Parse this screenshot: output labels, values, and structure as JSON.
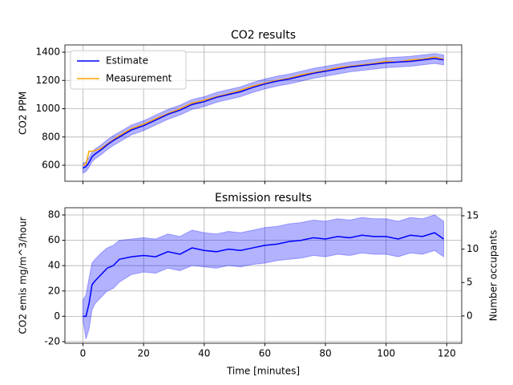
{
  "chart_data": [
    {
      "type": "line",
      "title": "CO2 results",
      "y_label": "CO2 PPM",
      "x": [
        0,
        1,
        2,
        3,
        4,
        6,
        8,
        10,
        12,
        16,
        20,
        24,
        28,
        32,
        36,
        40,
        44,
        48,
        52,
        56,
        60,
        64,
        68,
        72,
        76,
        80,
        84,
        88,
        92,
        96,
        100,
        104,
        108,
        112,
        116,
        119
      ],
      "series": [
        {
          "name": "Estimate",
          "color": "#0000ff",
          "values": [
            580,
            590,
            620,
            660,
            680,
            710,
            745,
            775,
            800,
            850,
            880,
            920,
            960,
            990,
            1030,
            1050,
            1080,
            1100,
            1120,
            1150,
            1175,
            1195,
            1210,
            1230,
            1250,
            1265,
            1280,
            1295,
            1305,
            1315,
            1325,
            1330,
            1335,
            1345,
            1355,
            1345
          ]
        },
        {
          "name": "Measurement",
          "color": "#ffa500",
          "values": [
            600,
            610,
            700,
            700,
            705,
            720,
            750,
            780,
            810,
            860,
            890,
            930,
            965,
            1000,
            1040,
            1060,
            1085,
            1105,
            1130,
            1160,
            1180,
            1200,
            1215,
            1240,
            1255,
            1270,
            1290,
            1300,
            1310,
            1320,
            1335,
            1330,
            1345,
            1350,
            1365,
            1350
          ]
        }
      ],
      "band": {
        "color": "#0000ff",
        "lower": [
          545,
          555,
          585,
          625,
          645,
          675,
          710,
          740,
          765,
          815,
          845,
          885,
          925,
          955,
          995,
          1015,
          1045,
          1065,
          1085,
          1115,
          1140,
          1160,
          1175,
          1195,
          1215,
          1230,
          1245,
          1260,
          1270,
          1280,
          1290,
          1295,
          1300,
          1310,
          1320,
          1310
        ],
        "upper": [
          615,
          625,
          655,
          695,
          715,
          745,
          780,
          810,
          835,
          885,
          915,
          955,
          995,
          1025,
          1065,
          1085,
          1115,
          1135,
          1155,
          1185,
          1210,
          1230,
          1245,
          1265,
          1285,
          1300,
          1315,
          1330,
          1340,
          1350,
          1360,
          1365,
          1370,
          1380,
          1390,
          1380
        ]
      },
      "xlim": [
        -5.95,
        124.95
      ],
      "xticks": [
        0,
        20,
        40,
        60,
        80,
        100,
        120
      ],
      "show_xtick_labels": false,
      "ylim": [
        487,
        1451
      ],
      "yticks": [
        600,
        800,
        1000,
        1200,
        1400
      ],
      "grid": true,
      "legend": "upper left"
    },
    {
      "type": "line",
      "title": "Esmission results",
      "x_label": "Time [minutes]",
      "y_label": "CO2 emis mg/m^3/hour",
      "y2_label": "Number occupants",
      "x": [
        0,
        1,
        2,
        3,
        4,
        6,
        8,
        10,
        12,
        16,
        20,
        24,
        28,
        32,
        36,
        40,
        44,
        48,
        52,
        56,
        60,
        64,
        68,
        72,
        76,
        80,
        84,
        88,
        92,
        96,
        100,
        104,
        108,
        112,
        116,
        119
      ],
      "series": [
        {
          "color": "#0000ff",
          "values": [
            0,
            0,
            10,
            25,
            28,
            33,
            38,
            40,
            45,
            47,
            48,
            47,
            51,
            49,
            54,
            52,
            51,
            53,
            52,
            54,
            56,
            57,
            59,
            60,
            62,
            61,
            63,
            62,
            64,
            63,
            63,
            61,
            64,
            63,
            66,
            61
          ]
        }
      ],
      "band": {
        "color": "#0000ff",
        "lower": [
          -3,
          -18,
          -10,
          5,
          10,
          15,
          20,
          22,
          27,
          33,
          35,
          34,
          38,
          36,
          40,
          39,
          38,
          40,
          39,
          41,
          42,
          44,
          45,
          46,
          48,
          47,
          49,
          48,
          50,
          49,
          49,
          47,
          50,
          49,
          52,
          47
        ],
        "upper": [
          13,
          17,
          30,
          42,
          45,
          50,
          54,
          56,
          60,
          61,
          62,
          61,
          65,
          63,
          68,
          66,
          65,
          67,
          66,
          68,
          70,
          71,
          73,
          74,
          76,
          75,
          77,
          76,
          78,
          77,
          77,
          75,
          78,
          77,
          80,
          75
        ]
      },
      "xlim": [
        -5.95,
        124.95
      ],
      "xticks": [
        0,
        20,
        40,
        60,
        80,
        100,
        120
      ],
      "show_xtick_labels": true,
      "ylim": [
        -21.3,
        85.7
      ],
      "yticks": [
        -20,
        0,
        20,
        40,
        60,
        80
      ],
      "y2lim": [
        -4.1,
        16.2
      ],
      "y2ticks": [
        0,
        5,
        10,
        15
      ],
      "grid": true
    }
  ]
}
